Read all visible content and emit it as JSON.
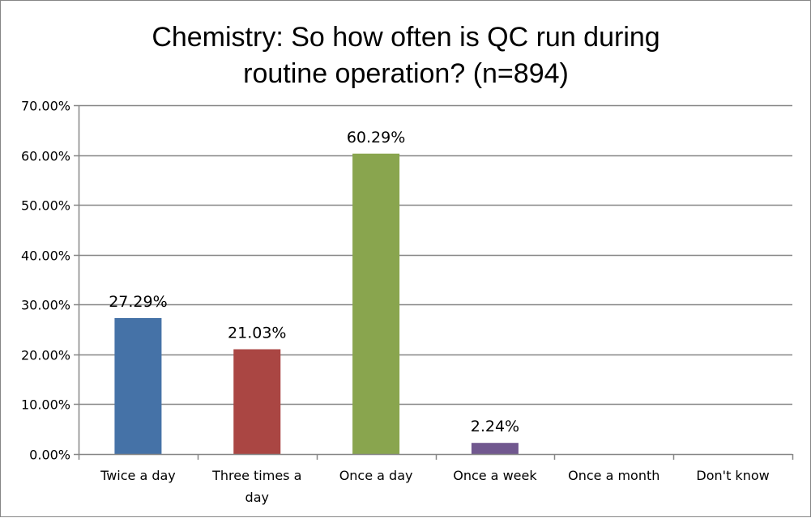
{
  "chart_data": {
    "type": "bar",
    "title": [
      "Chemistry: So how often is QC run during",
      "routine operation? (n=894)"
    ],
    "categories": [
      "Twice a day",
      "Three times a day",
      "Once a day",
      "Once a week",
      "Once a month",
      "Don't know"
    ],
    "category_lines": [
      [
        "Twice a day"
      ],
      [
        "Three times a",
        "day"
      ],
      [
        "Once a day"
      ],
      [
        "Once a week"
      ],
      [
        "Once a month"
      ],
      [
        "Don't know"
      ]
    ],
    "values": [
      27.29,
      21.03,
      60.29,
      2.24,
      null,
      null
    ],
    "data_labels": [
      "27.29%",
      "21.03%",
      "60.29%",
      "2.24%",
      "",
      ""
    ],
    "colors": [
      "#4572A7",
      "#AA4643",
      "#89A54E",
      "#71588F",
      "#4198AF",
      "#DB843D"
    ],
    "ylim": [
      0,
      70
    ],
    "yticks": [
      "0.00%",
      "10.00%",
      "20.00%",
      "30.00%",
      "40.00%",
      "50.00%",
      "60.00%",
      "70.00%"
    ],
    "grid": true,
    "legend": "none",
    "xlabel": "",
    "ylabel": ""
  }
}
